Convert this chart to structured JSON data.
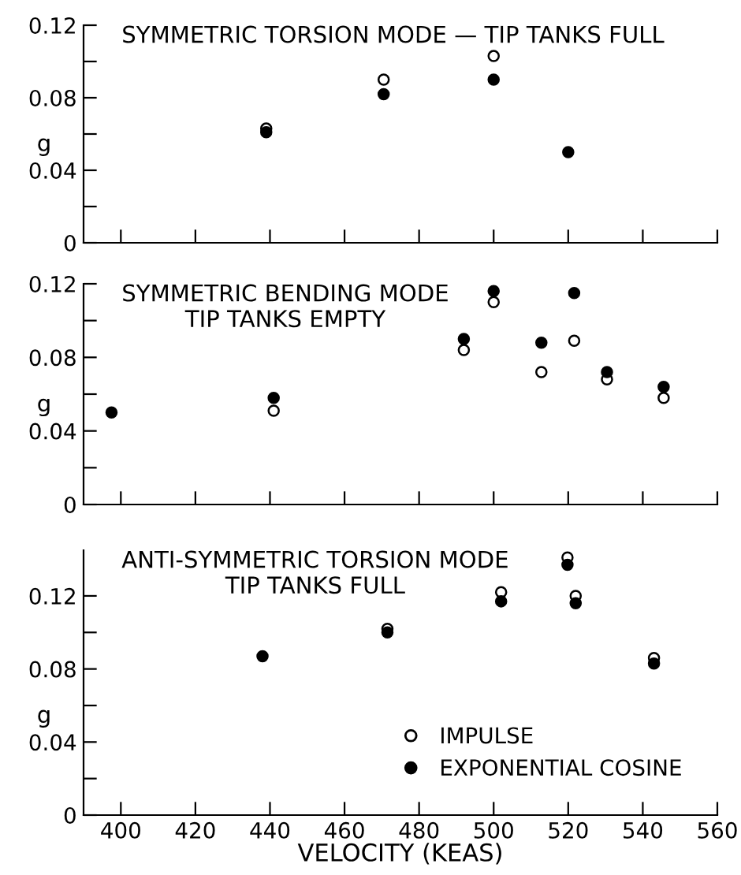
{
  "chart_data": [
    {
      "type": "scatter",
      "title": "SYMMETRIC TORSION MODE — TIP TANKS FULL",
      "ylabel": "g",
      "x": [
        439,
        470.5,
        500,
        520
      ],
      "series": [
        {
          "color": "#ffffff",
          "values": [
            0.063,
            0.09,
            0.103,
            null
          ]
        },
        {
          "color": "#000000",
          "values": [
            0.061,
            0.082,
            0.09,
            0.05
          ]
        }
      ],
      "xlim": [
        390,
        560
      ],
      "xticks": [
        {
          "value": 400,
          "label": null
        },
        {
          "value": 420,
          "label": null
        },
        {
          "value": 440,
          "label": null
        },
        {
          "value": 460,
          "label": null
        },
        {
          "value": 480,
          "label": null
        },
        {
          "value": 500,
          "label": null
        },
        {
          "value": 520,
          "label": null
        },
        {
          "value": 540,
          "label": null
        },
        {
          "value": 560,
          "label": null
        }
      ],
      "ylim": [
        0,
        0.12
      ],
      "yticks": [
        {
          "value": 0,
          "label": "0"
        },
        {
          "value": 0.02,
          "label": null
        },
        {
          "value": 0.04,
          "label": "0.04"
        },
        {
          "value": 0.06,
          "label": null
        },
        {
          "value": 0.08,
          "label": "0.08"
        },
        {
          "value": 0.1,
          "label": null
        },
        {
          "value": 0.12,
          "label": "0.12"
        }
      ],
      "tick_labels": "y",
      "marker": "circle",
      "grid": false,
      "legend": false
    },
    {
      "type": "scatter",
      "title": "SYMMETRIC BENDING MODE\nTIP TANKS EMPTY",
      "ylabel": "g",
      "series": [
        {
          "color": "#ffffff",
          "x": [
            441,
            492,
            500,
            512.8,
            521.6,
            530.4,
            545.6
          ],
          "values": [
            0.051,
            0.084,
            0.11,
            0.072,
            0.089,
            0.068,
            0.058
          ]
        },
        {
          "color": "#000000",
          "x": [
            397.5,
            441,
            492,
            500,
            512.8,
            521.6,
            530.4,
            545.6
          ],
          "values": [
            0.05,
            0.058,
            0.09,
            0.116,
            0.088,
            0.115,
            0.072,
            0.064
          ]
        }
      ],
      "xlim": [
        390,
        560
      ],
      "xticks": [
        {
          "value": 400,
          "label": null
        },
        {
          "value": 420,
          "label": null
        },
        {
          "value": 440,
          "label": null
        },
        {
          "value": 460,
          "label": null
        },
        {
          "value": 480,
          "label": null
        },
        {
          "value": 500,
          "label": null
        },
        {
          "value": 520,
          "label": null
        },
        {
          "value": 540,
          "label": null
        },
        {
          "value": 560,
          "label": null
        }
      ],
      "ylim": [
        0,
        0.12
      ],
      "yticks": [
        {
          "value": 0,
          "label": "0"
        },
        {
          "value": 0.02,
          "label": null
        },
        {
          "value": 0.04,
          "label": "0.04"
        },
        {
          "value": 0.06,
          "label": null
        },
        {
          "value": 0.08,
          "label": "0.08"
        },
        {
          "value": 0.1,
          "label": null
        },
        {
          "value": 0.12,
          "label": "0.12"
        }
      ],
      "tick_labels": "y",
      "marker": "circle",
      "grid": false,
      "legend": false
    },
    {
      "type": "scatter",
      "title": "ANTI-SYMMETRIC TORSION MODE\nTIP TANKS FULL",
      "ylabel": "g",
      "xlabel": "VELOCITY (KEAS)",
      "x": [
        438,
        471.5,
        502,
        519.8,
        522,
        543
      ],
      "series": [
        {
          "name": "IMPULSE",
          "color": "#ffffff",
          "values": [
            null,
            0.102,
            0.122,
            0.141,
            0.12,
            0.086
          ]
        },
        {
          "name": "EXPONENTIAL COSINE",
          "color": "#000000",
          "values": [
            0.087,
            0.1,
            0.117,
            0.137,
            0.116,
            0.083
          ]
        }
      ],
      "xlim": [
        390,
        560
      ],
      "xticks": [
        400,
        420,
        440,
        460,
        480,
        500,
        520,
        540,
        560
      ],
      "ylim": [
        0,
        0.145
      ],
      "yticks": [
        {
          "value": 0,
          "label": "0"
        },
        {
          "value": 0.02,
          "label": null
        },
        {
          "value": 0.04,
          "label": "0.04"
        },
        {
          "value": 0.06,
          "label": null
        },
        {
          "value": 0.08,
          "label": "0.08"
        },
        {
          "value": 0.1,
          "label": null
        },
        {
          "value": 0.12,
          "label": "0.12"
        }
      ],
      "marker": "circle",
      "grid": false,
      "legend": "bottom right"
    }
  ]
}
